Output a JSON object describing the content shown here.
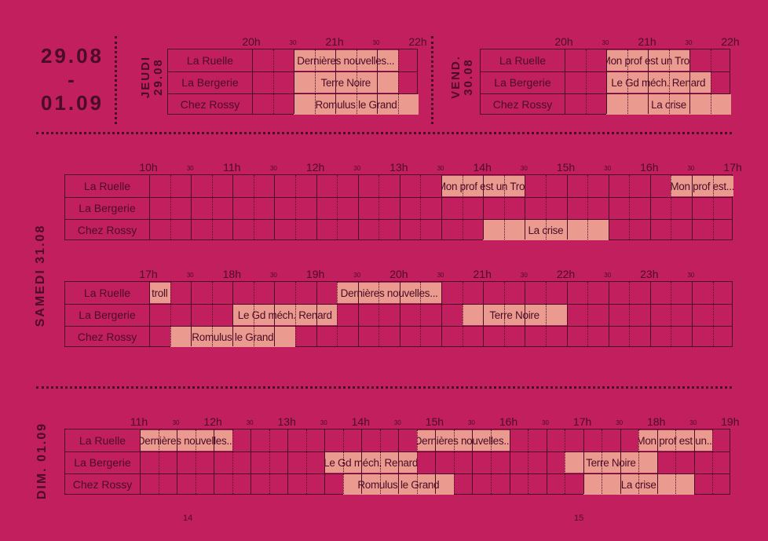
{
  "header": {
    "date_range_start": "29.08",
    "date_range_dash": "-",
    "date_range_end": "01.09"
  },
  "days": [
    {
      "label_line1": "JEUDI",
      "label_line2": "29.08",
      "venues": [
        "La Ruelle",
        "La Bergerie",
        "Chez Rossy"
      ],
      "hours": [
        "20h",
        "21h",
        "22h"
      ],
      "half_label": "30",
      "events": [
        {
          "venue": 0,
          "title": "Dernières nouvelles...",
          "start": 20.5,
          "end": 21.75
        },
        {
          "venue": 1,
          "title": "Terre Noire",
          "start": 20.5,
          "end": 21.75
        },
        {
          "venue": 2,
          "title": "Romulus le Grand",
          "start": 20.5,
          "end": 22.0
        }
      ]
    },
    {
      "label_line1": "VEND.",
      "label_line2": "30.08",
      "venues": [
        "La Ruelle",
        "La Bergerie",
        "Chez Rossy"
      ],
      "hours": [
        "20h",
        "21h",
        "22h"
      ],
      "half_label": "30",
      "events": [
        {
          "venue": 0,
          "title": "Mon prof est un Troll",
          "start": 20.5,
          "end": 21.5
        },
        {
          "venue": 1,
          "title": "Le Gd méch. Renard",
          "start": 20.5,
          "end": 21.75
        },
        {
          "venue": 2,
          "title": "La crise",
          "start": 20.5,
          "end": 22.0
        }
      ]
    },
    {
      "label": "SAMEDI 31.08",
      "venues": [
        "La Ruelle",
        "La Bergerie",
        "Chez Rossy"
      ],
      "half_label": "30",
      "blocks": [
        {
          "hours": [
            "10h",
            "11h",
            "12h",
            "13h",
            "14h",
            "15h",
            "16h",
            "17h"
          ],
          "events": [
            {
              "venue": 0,
              "title": "Mon prof est un Troll",
              "start": 13.5,
              "end": 14.5
            },
            {
              "venue": 0,
              "title": "Mon prof est...",
              "start": 16.25,
              "end": 17.0
            },
            {
              "venue": 2,
              "title": "La crise",
              "start": 14.0,
              "end": 15.5
            }
          ]
        },
        {
          "hours": [
            "17h",
            "18h",
            "19h",
            "20h",
            "21h",
            "22h",
            "23h"
          ],
          "events": [
            {
              "venue": 0,
              "title": "troll",
              "start": 17.0,
              "end": 17.25
            },
            {
              "venue": 0,
              "title": "Dernières nouvelles...",
              "start": 19.25,
              "end": 20.5
            },
            {
              "venue": 1,
              "title": "Le Gd méch. Renard",
              "start": 18.0,
              "end": 19.25
            },
            {
              "venue": 1,
              "title": "Terre Noire",
              "start": 20.75,
              "end": 22.0
            },
            {
              "venue": 2,
              "title": "Romulus le Grand",
              "start": 17.25,
              "end": 18.75
            }
          ]
        }
      ]
    },
    {
      "label": "DIM. 01.09",
      "venues": [
        "La Ruelle",
        "La Bergerie",
        "Chez Rossy"
      ],
      "hours": [
        "11h",
        "12h",
        "13h",
        "14h",
        "15h",
        "16h",
        "17h",
        "18h",
        "19h"
      ],
      "half_label": "30",
      "events": [
        {
          "venue": 0,
          "title": "Dernières nouvelles...",
          "start": 11.0,
          "end": 12.25
        },
        {
          "venue": 0,
          "title": "Dernières nouvelles...",
          "start": 14.75,
          "end": 16.0
        },
        {
          "venue": 0,
          "title": "Mon prof est un...",
          "start": 17.75,
          "end": 18.75
        },
        {
          "venue": 1,
          "title": "Le Gd méch. Renard",
          "start": 13.5,
          "end": 14.75
        },
        {
          "venue": 1,
          "title": "Terre Noire",
          "start": 16.75,
          "end": 18.0
        },
        {
          "venue": 2,
          "title": "Romulus le Grand",
          "start": 13.75,
          "end": 15.25
        },
        {
          "venue": 2,
          "title": "La crise",
          "start": 17.0,
          "end": 18.5
        }
      ]
    }
  ],
  "page_numbers": [
    "14",
    "15"
  ]
}
